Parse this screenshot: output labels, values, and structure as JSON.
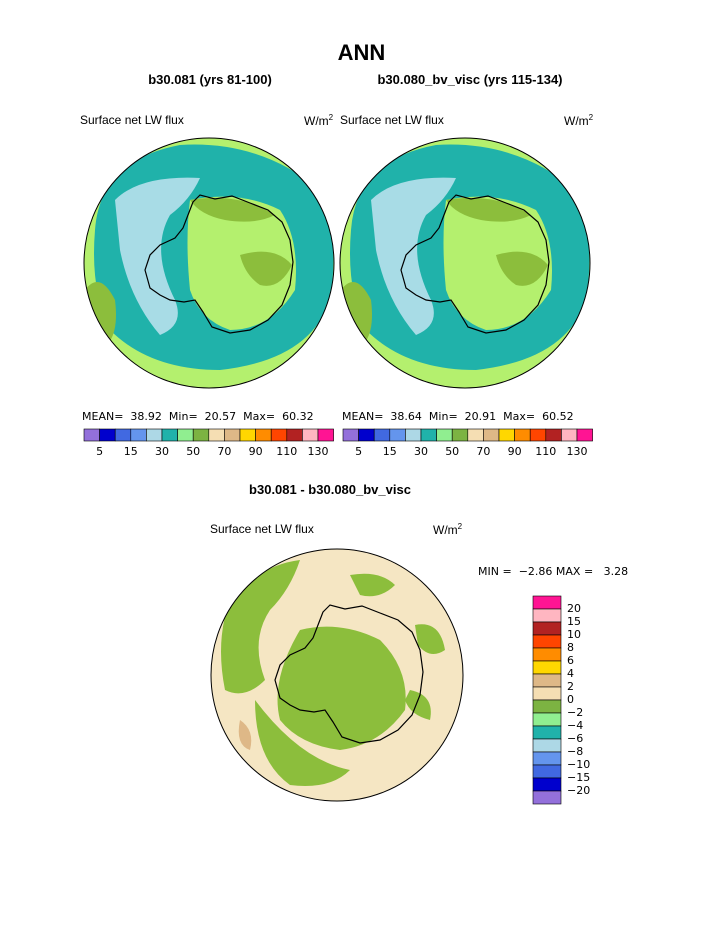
{
  "title": "ANN",
  "panel_left": {
    "case_title": "b30.081 (yrs 81-100)",
    "variable": "Surface net LW flux",
    "units_base": "W/m",
    "units_exp": "2",
    "mean_label": "MEAN=",
    "mean_value": "38.92",
    "min_label": "Min=",
    "min_value": "20.57",
    "max_label": "Max=",
    "max_value": "60.32"
  },
  "panel_right": {
    "case_title": "b30.080_bv_visc (yrs 115-134)",
    "variable": "Surface net LW flux",
    "units_base": "W/m",
    "units_exp": "2",
    "mean_label": "MEAN=",
    "mean_value": "38.64",
    "min_label": "Min=",
    "min_value": "20.91",
    "max_label": "Max=",
    "max_value": "60.52"
  },
  "panel_diff": {
    "case_title": "b30.081 - b30.080_bv_visc",
    "variable": "Surface net LW flux",
    "units_base": "W/m",
    "units_exp": "2",
    "min_label": "MIN =",
    "min_value": "−2.86",
    "max_label": "MAX =",
    "max_value": "3.28"
  },
  "colorbar_horizontal": {
    "colors": [
      "#9370db",
      "#0000cd",
      "#4169e1",
      "#6495ed",
      "#add8e6",
      "#20b2aa",
      "#90ee90",
      "#7cb342",
      "#f5deb3",
      "#deb887",
      "#ffd700",
      "#ff8c00",
      "#ff4500",
      "#b22222",
      "#ffb6c1",
      "#ff1493"
    ],
    "tick_labels": [
      "5",
      "15",
      "30",
      "50",
      "70",
      "90",
      "110",
      "130"
    ]
  },
  "colorbar_vertical": {
    "colors": [
      "#ff1493",
      "#ffb6c1",
      "#b22222",
      "#ff4500",
      "#ff8c00",
      "#ffd700",
      "#deb887",
      "#f5deb3",
      "#7cb342",
      "#90ee90",
      "#20b2aa",
      "#add8e6",
      "#6495ed",
      "#4169e1",
      "#0000cd",
      "#9370db"
    ],
    "tick_labels": [
      "20",
      "15",
      "10",
      "8",
      "6",
      "4",
      "2",
      "0",
      "−2",
      "−4",
      "−6",
      "−8",
      "−10",
      "−15",
      "−20"
    ]
  },
  "map_colors": {
    "ocean_teal": "#20b2aa",
    "light_green": "#b4f06e",
    "olive_green": "#8cbe3c",
    "light_blue": "#a8dce6",
    "beige": "#f5e6c3",
    "coast": "#000000"
  }
}
